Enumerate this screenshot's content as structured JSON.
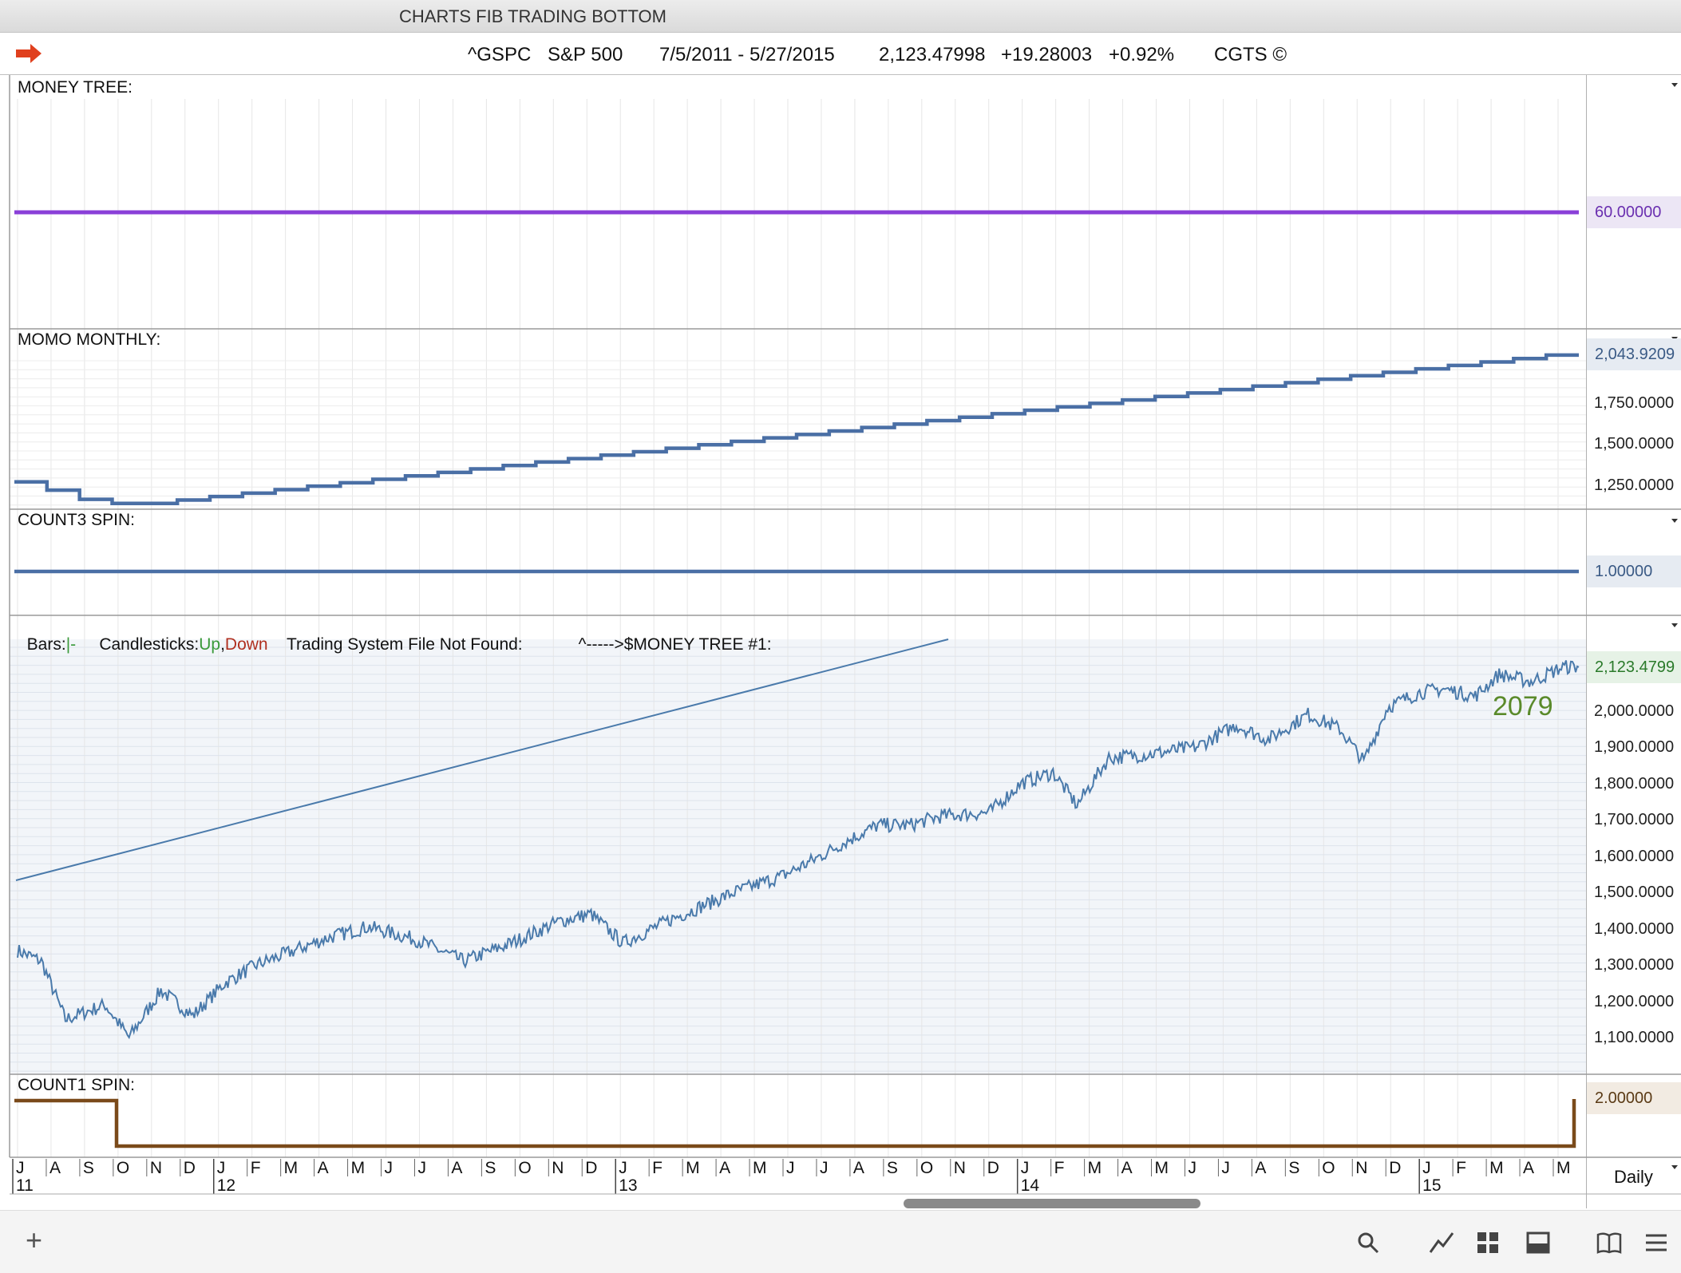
{
  "window": {
    "title": "CHARTS FIB TRADING BOTTOM"
  },
  "header": {
    "symbol": "^GSPC",
    "name": "S&P 500",
    "range": "7/5/2011 - 5/27/2015",
    "price": "2,123.47998",
    "change": "+19.28003",
    "change_pct": "+0.92%",
    "source": "CGTS ©"
  },
  "panels": {
    "money_tree": {
      "label": "MONEY TREE:",
      "value": "60.00000",
      "color": "#8a3fd8"
    },
    "momo_monthly": {
      "label": "MOMO MONTHLY:",
      "value": "2,043.9209",
      "ticks": [
        "1,750.0000",
        "1,500.0000",
        "1,250.0000"
      ],
      "color": "#4a6fa5"
    },
    "count3_spin": {
      "label": "COUNT3 SPIN:",
      "value": "1.00000",
      "color": "#4a6fa5"
    },
    "price": {
      "legend_bars": "Bars:",
      "legend_bars_mark": "|-",
      "legend_candles": "Candlesticks:",
      "legend_up": "Up",
      "legend_down": "Down",
      "legend_tsf": "Trading System File Not Found:",
      "legend_money": "^----->$MONEY TREE #1:",
      "last_value": "2,123.4799",
      "annotation": "2079",
      "ticks": [
        "2,000.0000",
        "1,900.0000",
        "1,800.0000",
        "1,700.0000",
        "1,600.0000",
        "1,500.0000",
        "1,400.0000",
        "1,300.0000",
        "1,200.0000",
        "1,100.0000"
      ],
      "line_color": "#4a7aab",
      "up_color": "#3a9a3a",
      "down_color": "#b03020",
      "annotation_color": "#5a8a2a"
    },
    "count1_spin": {
      "label": "COUNT1 SPIN:",
      "value": "2.00000",
      "color": "#7a4a1a"
    }
  },
  "x_axis": {
    "months": [
      "J",
      "A",
      "S",
      "O",
      "N",
      "D",
      "J",
      "F",
      "M",
      "A",
      "M",
      "J",
      "J",
      "A",
      "S",
      "O",
      "N",
      "D",
      "J",
      "F",
      "M",
      "A",
      "M",
      "J",
      "J",
      "A",
      "S",
      "O",
      "N",
      "D",
      "J",
      "F",
      "M",
      "A",
      "M",
      "J",
      "J",
      "A",
      "S",
      "O",
      "N",
      "D",
      "J",
      "F",
      "M",
      "A",
      "M"
    ],
    "years": [
      "11",
      "12",
      "13",
      "14",
      "15"
    ],
    "period": "Daily"
  },
  "toolbar": {
    "add": "+",
    "icons": [
      "search-icon",
      "draw-line-icon",
      "grid-icon",
      "panel-icon",
      "book-icon",
      "menu-icon"
    ]
  }
}
